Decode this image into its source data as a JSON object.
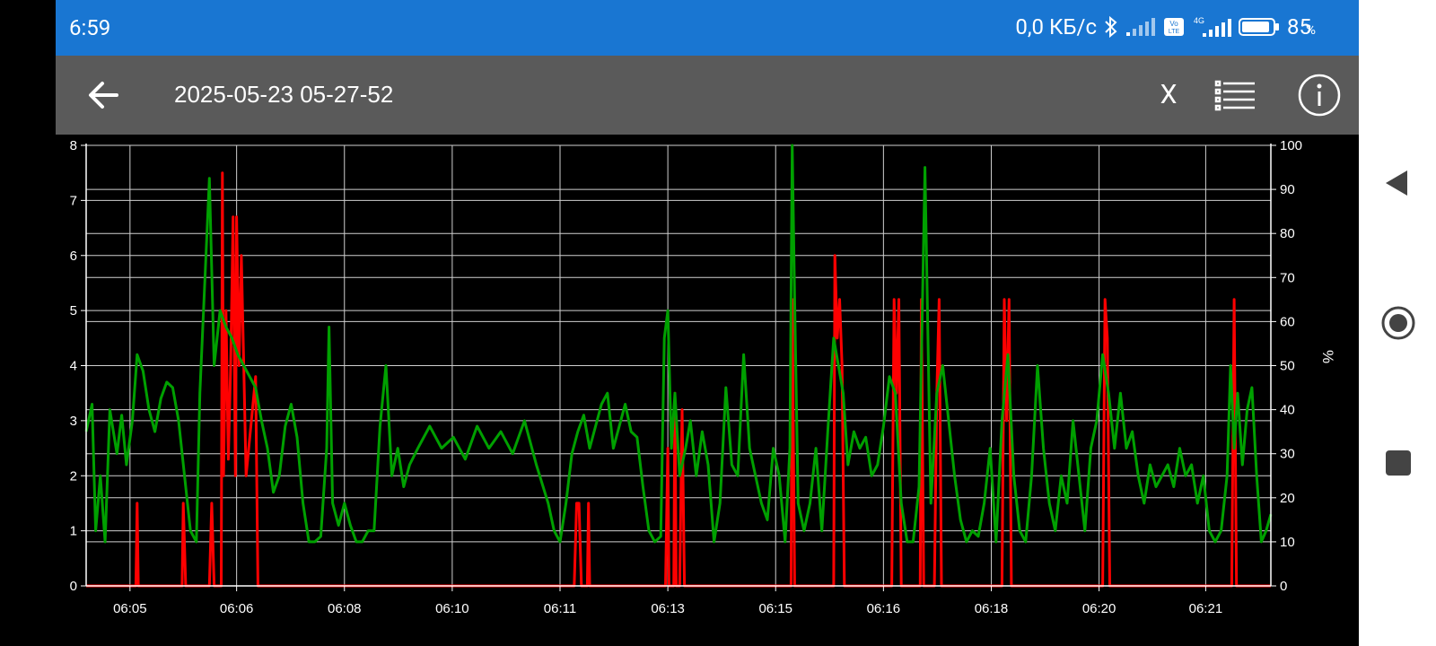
{
  "status_bar": {
    "time": "6:59",
    "net_speed": "0,0 КБ/с",
    "battery_pct": "85",
    "battery_unit": "%",
    "icons": [
      "bluetooth-icon",
      "signal-icon",
      "volte-icon",
      "4g-signal-icon",
      "battery-icon"
    ],
    "net_label": "4G",
    "volte_label": "Vo LTE",
    "color": "#1976d2"
  },
  "toolbar": {
    "title": "2025-05-23 05-27-52",
    "close_label": "X",
    "back_icon": "arrow-left-icon",
    "list_icon": "list-icon",
    "info_icon": "info-icon",
    "color": "#5a5a5a"
  },
  "chart_data": {
    "type": "line",
    "left_ylim": [
      0,
      8
    ],
    "left_ticks": [
      "0",
      "1",
      "2",
      "3",
      "4",
      "5",
      "6",
      "7",
      "8"
    ],
    "right_ylim": [
      0,
      100
    ],
    "right_ticks": [
      "0",
      "10",
      "20",
      "30",
      "40",
      "50",
      "60",
      "70",
      "80",
      "90",
      "100"
    ],
    "right_ylabel": "%",
    "xlim": [
      0,
      100
    ],
    "x_ticks": [
      {
        "label": "06:05",
        "x": 3.7
      },
      {
        "label": "06:06",
        "x": 12.7
      },
      {
        "label": "06:08",
        "x": 21.8
      },
      {
        "label": "06:10",
        "x": 30.9
      },
      {
        "label": "06:11",
        "x": 40.0
      },
      {
        "label": "06:13",
        "x": 49.1
      },
      {
        "label": "06:15",
        "x": 58.2
      },
      {
        "label": "06:16",
        "x": 67.3
      },
      {
        "label": "06:18",
        "x": 76.4
      },
      {
        "label": "06:20",
        "x": 85.5
      },
      {
        "label": "06:21",
        "x": 94.5
      }
    ],
    "grid": true,
    "series": [
      {
        "color": "#ff0000",
        "axis": "left",
        "points": [
          [
            0,
            0
          ],
          [
            4.2,
            0
          ],
          [
            4.3,
            1.5
          ],
          [
            4.4,
            0
          ],
          [
            8.1,
            0
          ],
          [
            8.2,
            1.5
          ],
          [
            8.4,
            0
          ],
          [
            10.4,
            0
          ],
          [
            10.6,
            1.5
          ],
          [
            10.8,
            0
          ],
          [
            11.4,
            0
          ],
          [
            11.5,
            7.5
          ],
          [
            11.6,
            2
          ],
          [
            11.8,
            5
          ],
          [
            12.0,
            2.3
          ],
          [
            12.2,
            4
          ],
          [
            12.4,
            6.7
          ],
          [
            12.6,
            2
          ],
          [
            12.7,
            6.7
          ],
          [
            12.9,
            4
          ],
          [
            13.1,
            6
          ],
          [
            13.3,
            4
          ],
          [
            13.5,
            2
          ],
          [
            14.3,
            3.8
          ],
          [
            14.5,
            0
          ],
          [
            41.2,
            0
          ],
          [
            41.4,
            1.5
          ],
          [
            41.6,
            1.5
          ],
          [
            41.8,
            0
          ],
          [
            42.3,
            0
          ],
          [
            42.4,
            1.5
          ],
          [
            42.5,
            0
          ],
          [
            48.9,
            0
          ],
          [
            49.1,
            2.5
          ],
          [
            49.2,
            0
          ],
          [
            49.6,
            0
          ],
          [
            49.7,
            3.5
          ],
          [
            49.8,
            0
          ],
          [
            50.1,
            0
          ],
          [
            50.3,
            3.2
          ],
          [
            50.5,
            0
          ],
          [
            59.5,
            0
          ],
          [
            59.6,
            5.2
          ],
          [
            59.8,
            0
          ],
          [
            63.1,
            0
          ],
          [
            63.2,
            6
          ],
          [
            63.4,
            4.5
          ],
          [
            63.6,
            5.2
          ],
          [
            63.8,
            4
          ],
          [
            64.0,
            0
          ],
          [
            68.0,
            0
          ],
          [
            68.2,
            5.2
          ],
          [
            68.4,
            3.5
          ],
          [
            68.6,
            5.2
          ],
          [
            68.8,
            0
          ],
          [
            70.4,
            0
          ],
          [
            70.5,
            5.2
          ],
          [
            70.7,
            0
          ],
          [
            71.6,
            0
          ],
          [
            71.8,
            3.5
          ],
          [
            72.0,
            5.2
          ],
          [
            72.2,
            0
          ],
          [
            77.3,
            0
          ],
          [
            77.5,
            5.2
          ],
          [
            77.7,
            3
          ],
          [
            77.9,
            5.2
          ],
          [
            78.1,
            0
          ],
          [
            85.8,
            0
          ],
          [
            86.0,
            5.2
          ],
          [
            86.2,
            4.5
          ],
          [
            86.4,
            0
          ],
          [
            96.7,
            0
          ],
          [
            96.9,
            5.2
          ],
          [
            97.1,
            0
          ],
          [
            100,
            0
          ]
        ]
      },
      {
        "color": "#00a000",
        "axis": "left",
        "points": [
          [
            0,
            2.8
          ],
          [
            0.5,
            3.3
          ],
          [
            0.8,
            1.0
          ],
          [
            1.2,
            2.0
          ],
          [
            1.6,
            0.8
          ],
          [
            2.0,
            3.2
          ],
          [
            2.6,
            2.4
          ],
          [
            3.0,
            3.1
          ],
          [
            3.4,
            2.2
          ],
          [
            3.9,
            3.0
          ],
          [
            4.3,
            4.2
          ],
          [
            4.8,
            3.9
          ],
          [
            5.3,
            3.2
          ],
          [
            5.8,
            2.8
          ],
          [
            6.3,
            3.4
          ],
          [
            6.8,
            3.7
          ],
          [
            7.3,
            3.6
          ],
          [
            7.8,
            3.0
          ],
          [
            8.3,
            2.0
          ],
          [
            8.8,
            1.0
          ],
          [
            9.3,
            0.8
          ],
          [
            9.6,
            3.5
          ],
          [
            10.4,
            7.4
          ],
          [
            10.8,
            4.0
          ],
          [
            11.3,
            5.0
          ],
          [
            11.8,
            4.7
          ],
          [
            12.3,
            4.5
          ],
          [
            12.8,
            4.2
          ],
          [
            13.3,
            4.0
          ],
          [
            13.8,
            3.8
          ],
          [
            14.3,
            3.6
          ],
          [
            14.8,
            3.0
          ],
          [
            15.3,
            2.5
          ],
          [
            15.8,
            1.7
          ],
          [
            16.3,
            2.0
          ],
          [
            16.8,
            2.9
          ],
          [
            17.3,
            3.3
          ],
          [
            17.8,
            2.7
          ],
          [
            18.3,
            1.5
          ],
          [
            18.8,
            0.8
          ],
          [
            19.3,
            0.8
          ],
          [
            19.8,
            0.9
          ],
          [
            20.3,
            2.5
          ],
          [
            20.5,
            4.7
          ],
          [
            20.8,
            1.5
          ],
          [
            21.3,
            1.1
          ],
          [
            21.8,
            1.5
          ],
          [
            22.3,
            1.1
          ],
          [
            22.8,
            0.8
          ],
          [
            23.3,
            0.8
          ],
          [
            23.8,
            1.0
          ],
          [
            24.3,
            1.0
          ],
          [
            24.8,
            2.9
          ],
          [
            25.3,
            4.0
          ],
          [
            25.8,
            2.0
          ],
          [
            26.3,
            2.5
          ],
          [
            26.8,
            1.8
          ],
          [
            27.3,
            2.2
          ],
          [
            28.0,
            2.5
          ],
          [
            29.0,
            2.9
          ],
          [
            30.0,
            2.5
          ],
          [
            31.0,
            2.7
          ],
          [
            32.0,
            2.3
          ],
          [
            33.0,
            2.9
          ],
          [
            34.0,
            2.5
          ],
          [
            35.0,
            2.8
          ],
          [
            36.0,
            2.4
          ],
          [
            37.0,
            3.0
          ],
          [
            38.0,
            2.2
          ],
          [
            39.0,
            1.5
          ],
          [
            39.5,
            1.0
          ],
          [
            40.0,
            0.8
          ],
          [
            40.5,
            1.5
          ],
          [
            41.0,
            2.4
          ],
          [
            41.5,
            2.8
          ],
          [
            42.0,
            3.1
          ],
          [
            42.5,
            2.5
          ],
          [
            43.0,
            2.9
          ],
          [
            43.5,
            3.3
          ],
          [
            44.0,
            3.5
          ],
          [
            44.5,
            2.5
          ],
          [
            45.0,
            2.9
          ],
          [
            45.5,
            3.3
          ],
          [
            46.0,
            2.8
          ],
          [
            46.5,
            2.7
          ],
          [
            47.0,
            1.8
          ],
          [
            47.5,
            1.0
          ],
          [
            48.0,
            0.8
          ],
          [
            48.5,
            0.9
          ],
          [
            48.8,
            4.5
          ],
          [
            49.1,
            5.0
          ],
          [
            49.4,
            2.5
          ],
          [
            49.7,
            3.5
          ],
          [
            50.1,
            2.0
          ],
          [
            50.6,
            2.5
          ],
          [
            51.0,
            3.0
          ],
          [
            51.5,
            2.0
          ],
          [
            52.0,
            2.8
          ],
          [
            52.5,
            2.2
          ],
          [
            53.0,
            0.8
          ],
          [
            53.5,
            1.5
          ],
          [
            54.0,
            3.6
          ],
          [
            54.5,
            2.2
          ],
          [
            55.0,
            2.0
          ],
          [
            55.5,
            4.2
          ],
          [
            56.0,
            2.5
          ],
          [
            56.5,
            2.0
          ],
          [
            57.0,
            1.5
          ],
          [
            57.5,
            1.2
          ],
          [
            58.0,
            2.5
          ],
          [
            58.5,
            2.0
          ],
          [
            59.0,
            0.8
          ],
          [
            59.4,
            2.5
          ],
          [
            59.6,
            8.0
          ],
          [
            59.8,
            5.2
          ],
          [
            60.1,
            1.5
          ],
          [
            60.6,
            1.0
          ],
          [
            61.1,
            1.5
          ],
          [
            61.6,
            2.5
          ],
          [
            62.1,
            1.0
          ],
          [
            62.6,
            2.8
          ],
          [
            63.1,
            4.5
          ],
          [
            63.5,
            4.0
          ],
          [
            63.9,
            3.5
          ],
          [
            64.3,
            2.2
          ],
          [
            64.8,
            2.8
          ],
          [
            65.3,
            2.5
          ],
          [
            65.8,
            2.7
          ],
          [
            66.3,
            2.0
          ],
          [
            66.8,
            2.2
          ],
          [
            67.3,
            2.9
          ],
          [
            67.8,
            3.8
          ],
          [
            68.3,
            3.5
          ],
          [
            68.8,
            1.5
          ],
          [
            69.3,
            0.8
          ],
          [
            69.8,
            0.8
          ],
          [
            70.3,
            1.8
          ],
          [
            70.8,
            7.6
          ],
          [
            71.3,
            1.5
          ],
          [
            71.8,
            3.5
          ],
          [
            72.3,
            4.0
          ],
          [
            72.8,
            3.0
          ],
          [
            73.3,
            2.0
          ],
          [
            73.8,
            1.2
          ],
          [
            74.3,
            0.8
          ],
          [
            74.8,
            1.0
          ],
          [
            75.3,
            0.9
          ],
          [
            75.8,
            1.5
          ],
          [
            76.3,
            2.5
          ],
          [
            76.8,
            0.8
          ],
          [
            77.3,
            3.0
          ],
          [
            77.8,
            4.2
          ],
          [
            78.3,
            2.0
          ],
          [
            78.8,
            1.0
          ],
          [
            79.3,
            0.8
          ],
          [
            79.8,
            2.0
          ],
          [
            80.3,
            4.0
          ],
          [
            80.8,
            2.5
          ],
          [
            81.3,
            1.5
          ],
          [
            81.8,
            1.0
          ],
          [
            82.3,
            2.0
          ],
          [
            82.8,
            1.5
          ],
          [
            83.3,
            3.0
          ],
          [
            83.8,
            2.0
          ],
          [
            84.3,
            1.0
          ],
          [
            84.8,
            2.5
          ],
          [
            85.3,
            3.0
          ],
          [
            85.8,
            4.2
          ],
          [
            86.3,
            3.5
          ],
          [
            86.8,
            2.5
          ],
          [
            87.3,
            3.5
          ],
          [
            87.8,
            2.5
          ],
          [
            88.3,
            2.8
          ],
          [
            88.8,
            2.0
          ],
          [
            89.3,
            1.5
          ],
          [
            89.8,
            2.2
          ],
          [
            90.3,
            1.8
          ],
          [
            90.8,
            2.0
          ],
          [
            91.3,
            2.2
          ],
          [
            91.8,
            1.8
          ],
          [
            92.3,
            2.5
          ],
          [
            92.8,
            2.0
          ],
          [
            93.3,
            2.2
          ],
          [
            93.8,
            1.5
          ],
          [
            94.3,
            2.0
          ],
          [
            94.8,
            1.0
          ],
          [
            95.3,
            0.8
          ],
          [
            95.8,
            1.0
          ],
          [
            96.3,
            2.0
          ],
          [
            96.6,
            4.0
          ],
          [
            96.9,
            2.5
          ],
          [
            97.2,
            3.5
          ],
          [
            97.6,
            2.2
          ],
          [
            98.0,
            3.2
          ],
          [
            98.4,
            3.6
          ],
          [
            98.8,
            2.0
          ],
          [
            99.2,
            0.8
          ],
          [
            99.6,
            1.0
          ],
          [
            100,
            1.3
          ]
        ]
      }
    ]
  },
  "nav_bar": {
    "back_icon": "triangle-back-icon",
    "home_icon": "circle-home-icon",
    "recents_icon": "square-recents-icon"
  }
}
